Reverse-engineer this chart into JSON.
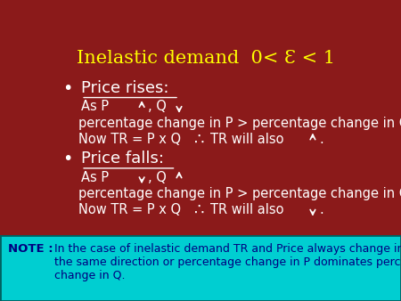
{
  "title": "Inelastic demand  0< Ɛ < 1",
  "title_color": "#FFFF00",
  "bg_color": "#8B1A1A",
  "main_text_color": "#FFFFFF",
  "note_bg": "#00CED1",
  "note_text": "In the case of inelastic demand TR and Price always change in\nthe same direction or percentage change in P dominates percentage\nchange in Q.",
  "note_label": "NOTE :",
  "note_label_color": "#000080",
  "note_text_color": "#000080",
  "figsize": [
    4.5,
    3.38
  ],
  "dpi": 100
}
